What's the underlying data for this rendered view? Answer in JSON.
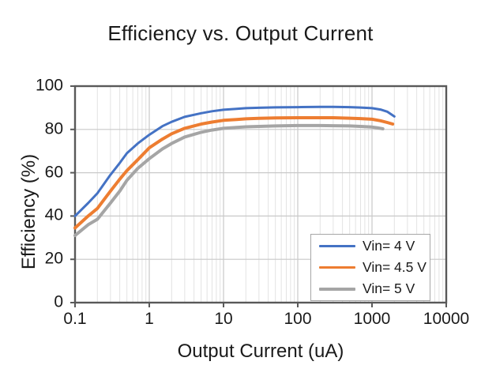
{
  "title": "Efficiency vs. Output Current",
  "chart_data": {
    "type": "line",
    "title": "Efficiency vs. Output Current",
    "xlabel": "Output Current (uA)",
    "ylabel": "Efficiency (%)",
    "x_scale": "log",
    "xlim": [
      0.1,
      10000
    ],
    "ylim": [
      0,
      100
    ],
    "x_ticks": [
      0.1,
      1,
      10,
      100,
      1000,
      10000
    ],
    "x_tick_labels": [
      "0.1",
      "1",
      "10",
      "100",
      "1000",
      "10000"
    ],
    "y_ticks": [
      0,
      20,
      40,
      60,
      80,
      100
    ],
    "y_tick_labels": [
      "0",
      "20",
      "40",
      "60",
      "80",
      "100"
    ],
    "grid": true,
    "minor_grid": true,
    "legend_position": "lower right",
    "axis_color": "#595959",
    "major_grid_color": "#c9c9c9",
    "minor_grid_color": "#e3e3e3",
    "series": [
      {
        "name": "Vin= 4 V",
        "color": "#4472C4",
        "stroke_width": 3,
        "points": [
          [
            0.1,
            40
          ],
          [
            0.15,
            46
          ],
          [
            0.2,
            50.5
          ],
          [
            0.3,
            59
          ],
          [
            0.4,
            64.5
          ],
          [
            0.5,
            69
          ],
          [
            0.7,
            73.5
          ],
          [
            1,
            77.5
          ],
          [
            1.5,
            81.5
          ],
          [
            2,
            83.5
          ],
          [
            3,
            85.8
          ],
          [
            5,
            87.5
          ],
          [
            7,
            88.4
          ],
          [
            10,
            89.1
          ],
          [
            15,
            89.5
          ],
          [
            20,
            89.8
          ],
          [
            30,
            90
          ],
          [
            50,
            90.2
          ],
          [
            100,
            90.3
          ],
          [
            200,
            90.4
          ],
          [
            300,
            90.4
          ],
          [
            500,
            90.3
          ],
          [
            700,
            90.1
          ],
          [
            1000,
            89.8
          ],
          [
            1300,
            89.2
          ],
          [
            1600,
            88.2
          ],
          [
            2000,
            86
          ]
        ]
      },
      {
        "name": "Vin= 4.5 V",
        "color": "#ED7D31",
        "stroke_width": 4,
        "points": [
          [
            0.1,
            34.5
          ],
          [
            0.15,
            40
          ],
          [
            0.2,
            43.5
          ],
          [
            0.3,
            51.5
          ],
          [
            0.4,
            57
          ],
          [
            0.5,
            61
          ],
          [
            0.7,
            66
          ],
          [
            1,
            71.5
          ],
          [
            1.5,
            75.5
          ],
          [
            2,
            78
          ],
          [
            3,
            80.5
          ],
          [
            5,
            82.5
          ],
          [
            7,
            83.4
          ],
          [
            10,
            84.2
          ],
          [
            15,
            84.6
          ],
          [
            20,
            84.9
          ],
          [
            30,
            85.1
          ],
          [
            50,
            85.3
          ],
          [
            100,
            85.4
          ],
          [
            200,
            85.4
          ],
          [
            300,
            85.4
          ],
          [
            500,
            85.2
          ],
          [
            700,
            85
          ],
          [
            1000,
            84.7
          ],
          [
            1300,
            84
          ],
          [
            1600,
            83.2
          ],
          [
            1900,
            82.5
          ]
        ]
      },
      {
        "name": "Vin= 5 V",
        "color": "#A5A5A5",
        "stroke_width": 4,
        "points": [
          [
            0.1,
            31
          ],
          [
            0.15,
            36
          ],
          [
            0.2,
            38.5
          ],
          [
            0.3,
            46
          ],
          [
            0.4,
            51.5
          ],
          [
            0.5,
            56.5
          ],
          [
            0.7,
            62
          ],
          [
            1,
            66.5
          ],
          [
            1.5,
            71
          ],
          [
            2,
            73.5
          ],
          [
            3,
            76.5
          ],
          [
            5,
            78.7
          ],
          [
            7,
            79.7
          ],
          [
            10,
            80.5
          ],
          [
            15,
            80.9
          ],
          [
            20,
            81.2
          ],
          [
            30,
            81.4
          ],
          [
            50,
            81.6
          ],
          [
            100,
            81.8
          ],
          [
            200,
            81.8
          ],
          [
            300,
            81.7
          ],
          [
            500,
            81.6
          ],
          [
            700,
            81.4
          ],
          [
            1000,
            81.1
          ],
          [
            1200,
            80.7
          ],
          [
            1400,
            80.3
          ]
        ]
      }
    ]
  }
}
